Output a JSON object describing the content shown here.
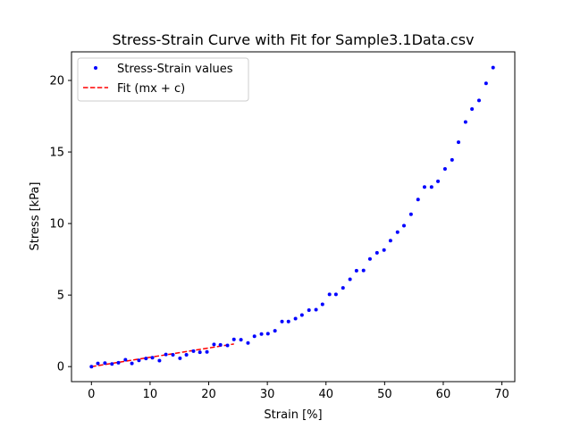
{
  "chart_data": {
    "type": "scatter",
    "title": "Stress-Strain Curve with Fit for Sample3.1Data.csv",
    "xlabel": "Strain [%]",
    "ylabel": "Stress [kPa]",
    "xlim": [
      -3.4,
      72.2
    ],
    "ylim": [
      -1.05,
      22.0
    ],
    "xticks": [
      0,
      10,
      20,
      30,
      40,
      50,
      60,
      70
    ],
    "yticks": [
      0,
      5,
      10,
      15,
      20
    ],
    "grid": false,
    "legend_position": "top-left",
    "series": [
      {
        "name": "Stress-Strain values",
        "style": "points",
        "color": "#0000ff",
        "x": [
          0.0,
          1.1,
          2.3,
          3.5,
          4.6,
          5.8,
          6.9,
          8.1,
          9.3,
          10.4,
          11.6,
          12.7,
          13.9,
          15.1,
          16.2,
          17.4,
          18.5,
          19.7,
          20.9,
          22.0,
          23.2,
          24.3,
          25.5,
          26.7,
          27.8,
          29.0,
          30.1,
          31.3,
          32.5,
          33.6,
          34.8,
          35.9,
          37.1,
          38.3,
          39.4,
          40.6,
          41.7,
          42.9,
          44.1,
          45.2,
          46.4,
          47.5,
          48.7,
          49.9,
          51.0,
          52.2,
          53.3,
          54.5,
          55.7,
          56.8,
          58.0,
          59.1,
          60.3,
          61.5,
          62.6,
          63.8,
          64.9,
          66.1,
          67.3,
          68.5
        ],
        "y": [
          0.0,
          0.22,
          0.25,
          0.18,
          0.27,
          0.48,
          0.22,
          0.43,
          0.57,
          0.62,
          0.42,
          0.85,
          0.82,
          0.58,
          0.82,
          1.08,
          1.0,
          1.03,
          1.55,
          1.52,
          1.48,
          1.9,
          1.88,
          1.65,
          2.12,
          2.28,
          2.3,
          2.5,
          3.15,
          3.15,
          3.35,
          3.6,
          3.95,
          3.98,
          4.35,
          5.05,
          5.05,
          5.5,
          6.1,
          6.7,
          6.72,
          7.52,
          7.95,
          8.15,
          8.8,
          9.4,
          9.85,
          10.65,
          11.68,
          12.55,
          12.55,
          12.95,
          13.82,
          14.45,
          15.68,
          17.1,
          18.0,
          18.6,
          19.8,
          20.9
        ]
      },
      {
        "name": "Fit (mx + c)",
        "style": "dashed-line",
        "color": "#ff0000",
        "x": [
          0.0,
          24.3
        ],
        "y": [
          0.0,
          1.58
        ]
      }
    ]
  }
}
